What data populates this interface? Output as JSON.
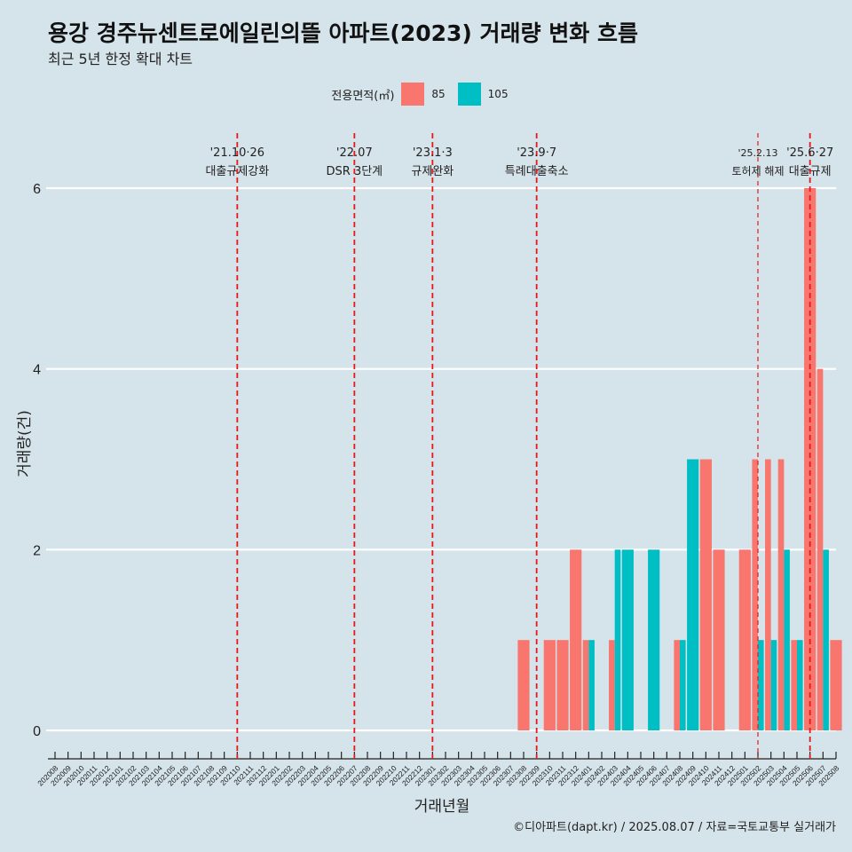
{
  "title": "용강 경주뉴센트로에일린의뜰 아파트(2023) 거래량 변화 흐름",
  "subtitle": "최근 5년 한정 확대 차트",
  "legend": {
    "title": "전용면적(㎡)",
    "items": [
      {
        "label": "85",
        "color": "#f8766d"
      },
      {
        "label": "105",
        "color": "#00bfc4"
      }
    ]
  },
  "caption": "©디아파트(dapt.kr) / 2025.08.07 / 자료=국토교통부 실거래가",
  "chart_data": {
    "type": "bar",
    "xlabel": "거래년월",
    "ylabel": "거래량(건)",
    "ylim": [
      0,
      6
    ],
    "yticks": [
      0,
      2,
      4,
      6
    ],
    "grid": true,
    "legend_position": "top",
    "categories": [
      "202008",
      "202009",
      "202010",
      "202011",
      "202012",
      "202101",
      "202102",
      "202103",
      "202104",
      "202105",
      "202106",
      "202107",
      "202108",
      "202109",
      "202110",
      "202111",
      "202112",
      "202201",
      "202202",
      "202203",
      "202204",
      "202205",
      "202206",
      "202207",
      "202208",
      "202209",
      "202210",
      "202211",
      "202212",
      "202301",
      "202302",
      "202303",
      "202304",
      "202305",
      "202306",
      "202307",
      "202308",
      "202309",
      "202310",
      "202311",
      "202312",
      "202401",
      "202402",
      "202403",
      "202404",
      "202405",
      "202406",
      "202407",
      "202408",
      "202409",
      "202410",
      "202411",
      "202412",
      "202501",
      "202502",
      "202503",
      "202504",
      "202505",
      "202506",
      "202507",
      "202508"
    ],
    "series": [
      {
        "name": "85",
        "color": "#f8766d",
        "values": [
          0,
          0,
          0,
          0,
          0,
          0,
          0,
          0,
          0,
          0,
          0,
          0,
          0,
          0,
          0,
          0,
          0,
          0,
          0,
          0,
          0,
          0,
          0,
          0,
          0,
          0,
          0,
          0,
          0,
          0,
          0,
          0,
          0,
          0,
          0,
          0,
          1,
          0,
          1,
          1,
          2,
          1,
          0,
          1,
          0,
          0,
          0,
          0,
          1,
          0,
          3,
          2,
          0,
          2,
          3,
          3,
          3,
          1,
          6,
          4,
          1
        ]
      },
      {
        "name": "105",
        "color": "#00bfc4",
        "values": [
          0,
          0,
          0,
          0,
          0,
          0,
          0,
          0,
          0,
          0,
          0,
          0,
          0,
          0,
          0,
          0,
          0,
          0,
          0,
          0,
          0,
          0,
          0,
          0,
          0,
          0,
          0,
          0,
          0,
          0,
          0,
          0,
          0,
          0,
          0,
          0,
          0,
          0,
          0,
          0,
          0,
          1,
          0,
          2,
          2,
          0,
          2,
          0,
          1,
          3,
          0,
          0,
          0,
          0,
          1,
          1,
          2,
          1,
          0,
          2,
          0
        ]
      }
    ],
    "events": [
      {
        "date": "202110",
        "line1": "'21.10·26",
        "line2": "대출규제강화",
        "small": false
      },
      {
        "date": "202207",
        "line1": "'22.07",
        "line2": "DSR 3단계",
        "small": false
      },
      {
        "date": "202301",
        "line1": "'23.1·3",
        "line2": "규제완화",
        "small": false
      },
      {
        "date": "202309",
        "line1": "'23.9·7",
        "line2": "특례대출축소",
        "small": false
      },
      {
        "date": "202502",
        "line1": "'25.2.13",
        "line2": "토허제 해제",
        "small": true
      },
      {
        "date": "202506",
        "line1": "'25.6·27",
        "line2": "대출규제",
        "small": false
      }
    ]
  }
}
